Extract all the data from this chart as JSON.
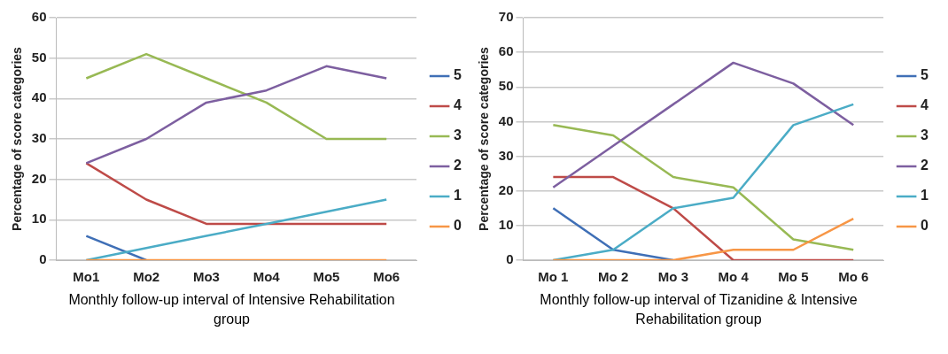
{
  "chart_data": [
    {
      "type": "line",
      "ylabel": "Percentage of score categories",
      "xlabel": "Monthly follow-up interval of Intensive Rehabilitation group",
      "categories": [
        "Mo1",
        "Mo2",
        "Mo3",
        "Mo4",
        "Mo5",
        "Mo6"
      ],
      "ylim": [
        0,
        60
      ],
      "yticks": [
        0,
        10,
        20,
        30,
        40,
        50,
        60
      ],
      "grid": "y",
      "legend": "right",
      "marker": "none",
      "series": [
        {
          "name": "5",
          "color": "#3f6fb6",
          "values": [
            6,
            0,
            null,
            null,
            null,
            null
          ]
        },
        {
          "name": "4",
          "color": "#be4b48",
          "values": [
            24,
            15,
            9,
            9,
            9,
            9
          ]
        },
        {
          "name": "3",
          "color": "#98b954",
          "values": [
            45,
            51,
            45,
            39,
            30,
            30
          ]
        },
        {
          "name": "2",
          "color": "#7d5fa0",
          "values": [
            24,
            30,
            39,
            42,
            48,
            45
          ]
        },
        {
          "name": "1",
          "color": "#4bacc6",
          "values": [
            0,
            3,
            6,
            9,
            12,
            15
          ]
        },
        {
          "name": "0",
          "color": "#f79646",
          "values": [
            0,
            0,
            0,
            0,
            0,
            0
          ]
        }
      ]
    },
    {
      "type": "line",
      "ylabel": "Percentage of score categories",
      "xlabel": "Monthly follow-up interval of Tizanidine & Intensive Rehabilitation group",
      "categories": [
        "Mo 1",
        "Mo 2",
        "Mo 3",
        "Mo 4",
        "Mo 5",
        "Mo 6"
      ],
      "ylim": [
        0,
        70
      ],
      "yticks": [
        0,
        10,
        20,
        30,
        40,
        50,
        60,
        70
      ],
      "grid": "y",
      "legend": "right",
      "marker": "none",
      "series": [
        {
          "name": "5",
          "color": "#3f6fb6",
          "values": [
            15,
            3,
            0,
            null,
            null,
            null
          ]
        },
        {
          "name": "4",
          "color": "#be4b48",
          "values": [
            24,
            24,
            15,
            0,
            0,
            0
          ]
        },
        {
          "name": "3",
          "color": "#98b954",
          "values": [
            39,
            36,
            24,
            21,
            6,
            3
          ]
        },
        {
          "name": "2",
          "color": "#7d5fa0",
          "values": [
            21,
            33,
            45,
            57,
            51,
            39
          ]
        },
        {
          "name": "1",
          "color": "#4bacc6",
          "values": [
            0,
            3,
            15,
            18,
            39,
            45
          ]
        },
        {
          "name": "0",
          "color": "#f79646",
          "values": [
            0,
            0,
            0,
            3,
            3,
            12
          ]
        }
      ]
    }
  ]
}
